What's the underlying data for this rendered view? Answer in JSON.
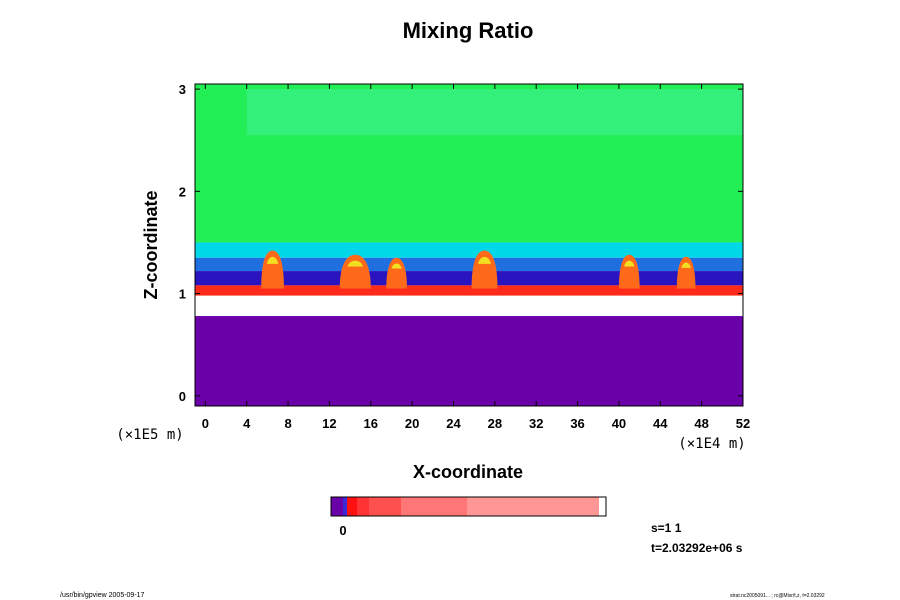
{
  "chart_data": {
    "type": "heatmap",
    "title": "Mixing Ratio",
    "xlabel": "X-coordinate",
    "ylabel": "Z-coordinate",
    "x_unit": "(×1E4 m)",
    "z_unit": "(×1E5 m)",
    "xlim": [
      -1,
      52
    ],
    "zlim": [
      -0.1,
      3.05
    ],
    "x_ticks": [
      0,
      4,
      8,
      12,
      16,
      20,
      24,
      28,
      32,
      36,
      40,
      44,
      48,
      52
    ],
    "z_ticks": [
      0,
      1,
      2,
      3
    ],
    "colorbar": {
      "label": "0",
      "colors": [
        "#6a00a8",
        "#3a2ad8",
        "#ff1010",
        "#ff3333",
        "#ff5050",
        "#ff7676",
        "#ff9696"
      ]
    },
    "regions": [
      {
        "name": "upper-layer",
        "color": "#22ee55",
        "x": [
          -1,
          52
        ],
        "z": [
          1.5,
          3.05
        ]
      },
      {
        "name": "upper-band",
        "color": "#33f07a",
        "x": [
          4,
          52
        ],
        "z": [
          2.55,
          3.0
        ]
      },
      {
        "name": "transition-cyan",
        "color": "#00d8e8",
        "x": [
          -1,
          52
        ],
        "z": [
          1.35,
          1.5
        ]
      },
      {
        "name": "transition-blue",
        "color": "#1f6fe0",
        "x": [
          -1,
          52
        ],
        "z": [
          1.22,
          1.35
        ]
      },
      {
        "name": "transition-darkblue",
        "color": "#2a14c0",
        "x": [
          -1,
          52
        ],
        "z": [
          1.08,
          1.22
        ]
      },
      {
        "name": "mixing-layer-red",
        "color": "#ff2a1a",
        "x": [
          -1,
          52
        ],
        "z": [
          0.95,
          1.08
        ]
      },
      {
        "name": "void-band",
        "color": "#ffffff",
        "x": [
          -1,
          52
        ],
        "z": [
          0.78,
          0.98
        ]
      },
      {
        "name": "lower-layer",
        "color": "#6a00a8",
        "x": [
          -1,
          52
        ],
        "z": [
          -0.1,
          0.78
        ]
      }
    ],
    "plumes": [
      {
        "x": 6.5,
        "z_base": 1.05,
        "z_top": 1.42,
        "width": 2.2
      },
      {
        "x": 14.5,
        "z_base": 1.05,
        "z_top": 1.38,
        "width": 3.0
      },
      {
        "x": 18.5,
        "z_base": 1.05,
        "z_top": 1.35,
        "width": 2.0
      },
      {
        "x": 27.0,
        "z_base": 1.05,
        "z_top": 1.42,
        "width": 2.5
      },
      {
        "x": 41.0,
        "z_base": 1.05,
        "z_top": 1.38,
        "width": 2.0
      },
      {
        "x": 46.5,
        "z_base": 1.05,
        "z_top": 1.36,
        "width": 1.8
      }
    ]
  },
  "info": {
    "scale": "s=1 1",
    "time": "t=2.03292e+06 s"
  },
  "footer": {
    "left": "/usr/bin/gpview 2005-09-17",
    "right": "strat.nc2005091... ; rc@Mixr/t,z, t=2.03292"
  },
  "colors": {
    "frame": "#000000",
    "white": "#ffffff"
  }
}
